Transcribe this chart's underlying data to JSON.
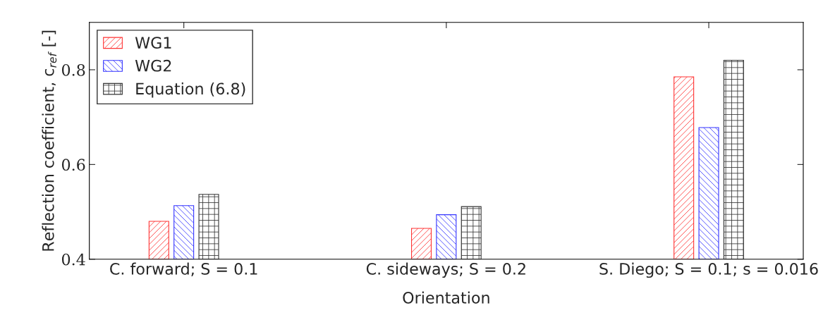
{
  "chart_data": {
    "type": "bar",
    "xlabel": "Orientation",
    "ylabel": "Reflection coefficient, c$_{ref}$ [-]",
    "categories": [
      "C. forward; S = 0.1",
      "C. sideways; S = 0.2",
      "S. Diego; S = 0.1; s = 0.016"
    ],
    "series": [
      {
        "name": "WG1",
        "color": "#ff3333",
        "values": [
          0.48,
          0.465,
          0.785
        ]
      },
      {
        "name": "WG2",
        "color": "#3333ff",
        "values": [
          0.513,
          0.494,
          0.678
        ]
      },
      {
        "name": "Equation (6.8)",
        "color": "#333333",
        "values": [
          0.537,
          0.511,
          0.82
        ]
      }
    ],
    "ylim": [
      0.4,
      0.9
    ],
    "yticks": [
      0.4,
      0.6,
      0.8
    ],
    "grid": false,
    "legend": "top left"
  }
}
